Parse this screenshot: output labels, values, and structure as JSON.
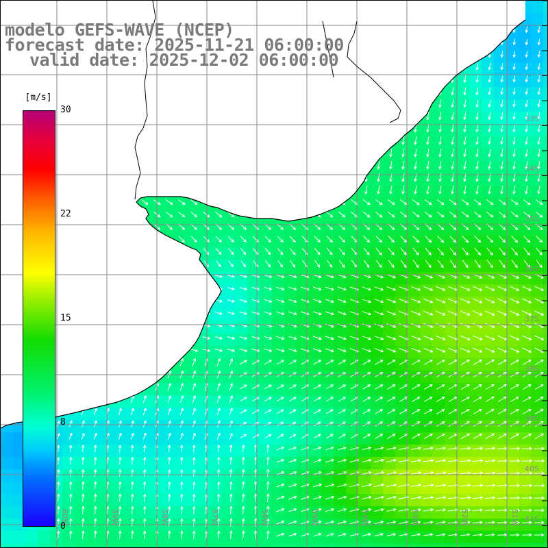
{
  "header": {
    "model": "modelo GEFS-WAVE (NCEP)",
    "forecast": "forecast date: 2025-11-21 06:00:00",
    "valid": "valid date: 2025-12-02 06:00:00"
  },
  "colorbar": {
    "unit": "[m/s]",
    "ticks": [
      {
        "label": "30",
        "value": 30
      },
      {
        "label": "22",
        "value": 22
      },
      {
        "label": "15",
        "value": 15
      },
      {
        "label": "8",
        "value": 8
      },
      {
        "label": "0",
        "value": 0
      }
    ],
    "colors": [
      "#1a00ff",
      "#0073ff",
      "#00c8ff",
      "#00ffd2",
      "#00f064",
      "#14dc00",
      "#a0f000",
      "#ffff00",
      "#ffb400",
      "#ff5a00",
      "#ff0000",
      "#b40078"
    ]
  },
  "lat_labels": [
    "33S",
    "34S",
    "35S",
    "36S",
    "37S",
    "38S",
    "39S",
    "40S",
    "41S"
  ],
  "lon_labels": [
    "60W",
    "59W",
    "58W",
    "57W",
    "56W",
    "55W",
    "54W",
    "53W",
    "52W",
    "51W"
  ],
  "map_colors": {
    "land": "#ffffff",
    "coast": "#000000",
    "grid": "#888888",
    "arrows": "#ffffff",
    "label": "#8c8c8c"
  }
}
